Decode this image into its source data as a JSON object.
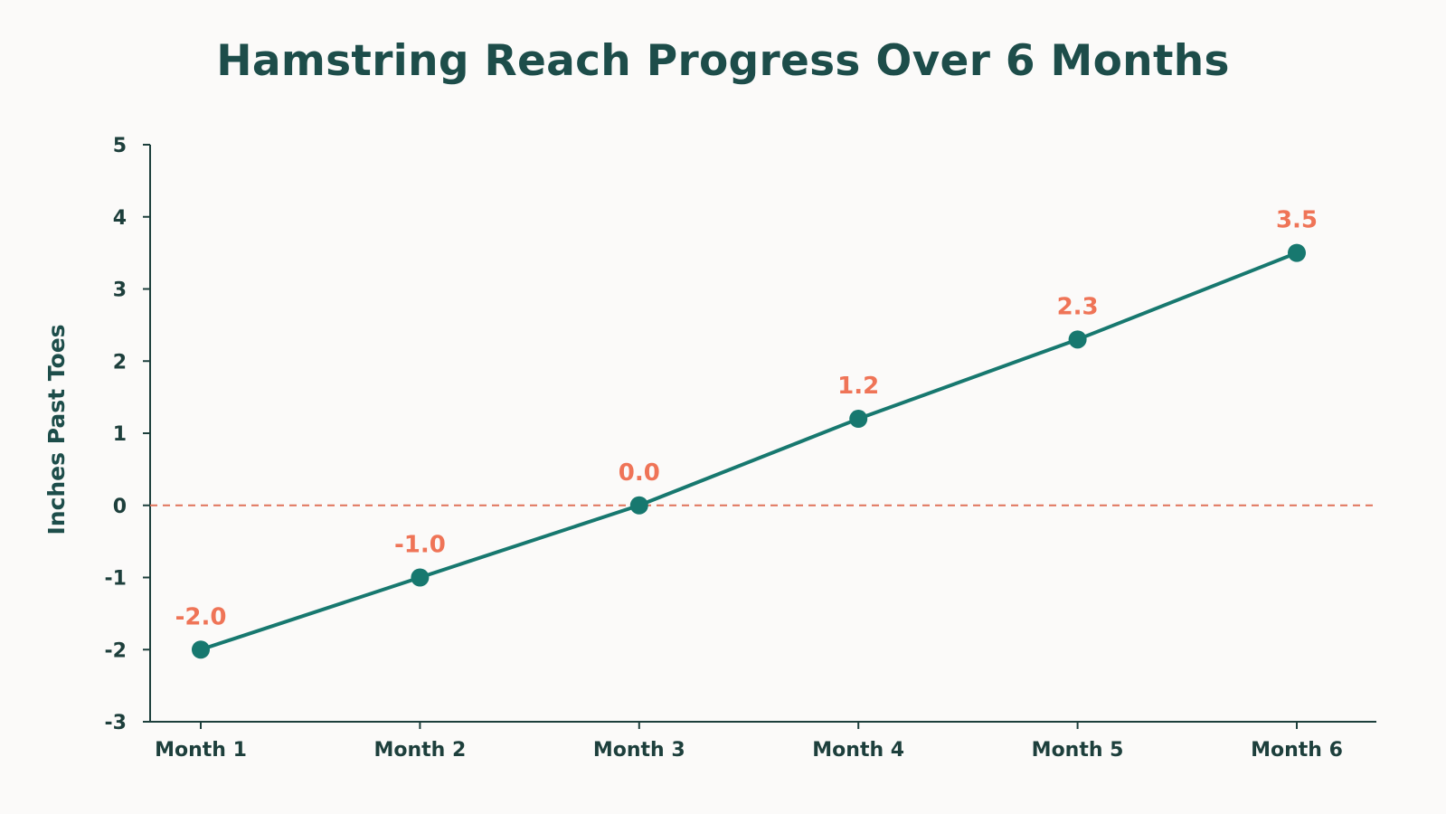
{
  "chart_data": {
    "type": "line",
    "title": "Hamstring Reach Progress Over 6 Months",
    "xlabel": "",
    "ylabel": "Inches Past Toes",
    "categories": [
      "Month 1",
      "Month 2",
      "Month 3",
      "Month 4",
      "Month 5",
      "Month 6"
    ],
    "series": [
      {
        "values": [
          -2.0,
          -1.0,
          0.0,
          1.2,
          2.3,
          3.5
        ]
      }
    ],
    "data_labels": [
      "-2.0",
      "-1.0",
      "0.0",
      "1.2",
      "2.3",
      "3.5"
    ],
    "ylim": [
      -3,
      5
    ],
    "yticks": [
      5,
      4,
      3,
      2,
      1,
      0,
      -1,
      -2,
      -3
    ],
    "ytick_labels": [
      "5",
      "4",
      "3",
      "2",
      "1",
      "0",
      "-1",
      "-2",
      "-3"
    ],
    "reference_line": {
      "y": 0,
      "style": "dashed"
    },
    "grid": false,
    "colors": {
      "line": "#17786F",
      "marker": "#17786F",
      "data_label": "#EF7457",
      "reference_line": "#E0735A",
      "axis": "#1D3F3C",
      "title": "#1D4D4A"
    }
  }
}
